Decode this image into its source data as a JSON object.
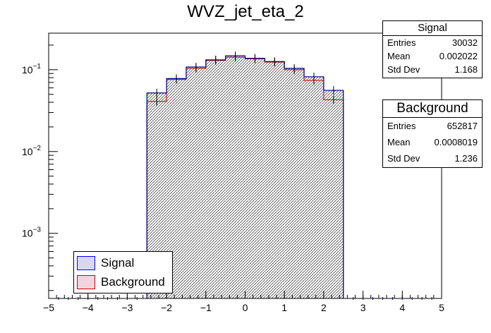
{
  "chart_data": {
    "type": "histogram",
    "title": "WVZ_jet_eta_2",
    "x_range": [
      -5,
      5
    ],
    "y_scale": "log",
    "y_range": [
      0.00016,
      0.28
    ],
    "bin_edges": [
      -2.5,
      -2.0,
      -1.5,
      -1.0,
      -0.5,
      0.0,
      0.5,
      1.0,
      1.5,
      2.0,
      2.5
    ],
    "x_ticks": [
      "-5",
      "-4",
      "-3",
      "-2",
      "-1",
      "0",
      "1",
      "2",
      "3",
      "4",
      "5"
    ],
    "y_ticks": [
      {
        "base": "10",
        "exp": "-3",
        "value": 0.001
      },
      {
        "base": "10",
        "exp": "-2",
        "value": 0.01
      },
      {
        "base": "10",
        "exp": "-1",
        "value": 0.1
      }
    ],
    "series": [
      {
        "name": "Signal",
        "color": "#0000ff",
        "fill": "#c8c8e6",
        "values": [
          0.052,
          0.078,
          0.108,
          0.132,
          0.148,
          0.138,
          0.126,
          0.104,
          0.082,
          0.056
        ]
      },
      {
        "name": "Background",
        "color": "#cc0000",
        "fill": "#e8c6d0",
        "values": [
          0.041,
          0.076,
          0.104,
          0.13,
          0.142,
          0.136,
          0.124,
          0.1,
          0.074,
          0.043
        ]
      }
    ]
  },
  "stats": {
    "signal": {
      "title": "Signal",
      "entries_label": "Entries",
      "entries": "30032",
      "mean_label": "Mean",
      "mean": "0.002022",
      "std_label": "Std Dev",
      "std": "1.168"
    },
    "background": {
      "title": "Background",
      "entries_label": "Entries",
      "entries": "652817",
      "mean_label": "Mean",
      "mean": "0.0008019",
      "std_label": "Std Dev",
      "std": "1.236"
    }
  },
  "legend": {
    "signal_label": "Signal",
    "background_label": "Background"
  }
}
